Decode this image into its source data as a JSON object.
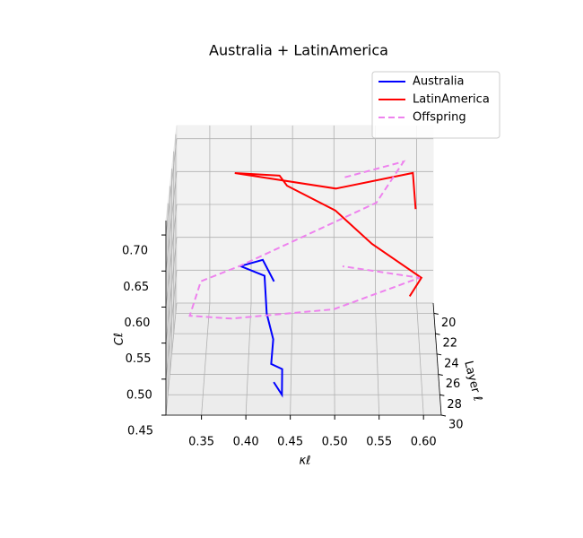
{
  "chart_data": {
    "type": "line3d",
    "title": "Australia + LatinAmerica",
    "xlabel": "κℓ",
    "ylabel": "Layer ℓ",
    "zlabel": "Cℓ",
    "layers": [
      20,
      21,
      22,
      23,
      24,
      25,
      26,
      27,
      28,
      29
    ],
    "xlim": [
      0.31,
      0.62
    ],
    "ylim": [
      19,
      30
    ],
    "zlim": [
      0.45,
      0.72
    ],
    "xticks": [
      0.35,
      {
        "value": 0.4,
        "label": "0.40"
      },
      0.45,
      {
        "value": 0.5,
        "label": "0.50"
      },
      0.55,
      {
        "value": 0.6,
        "label": "0.60"
      }
    ],
    "yticks": [
      20,
      22,
      24,
      26,
      28,
      30
    ],
    "zticks": [
      0.45,
      {
        "value": 0.5,
        "label": "0.50"
      },
      0.55,
      {
        "value": 0.6,
        "label": "0.60"
      },
      0.65,
      {
        "value": 0.7,
        "label": "0.70"
      }
    ],
    "grid": true,
    "legend": "upper right",
    "series": [
      {
        "name": "Australia",
        "color": "#0000ff",
        "linestyle": "solid",
        "x": [
          0.428,
          0.415,
          0.389,
          0.418,
          0.421,
          0.429,
          0.427,
          0.44,
          0.44,
          0.431
        ],
        "values": [
          0.498,
          0.545,
          0.55,
          0.55,
          0.509,
          0.486,
          0.465,
          0.472,
          0.45,
          0.482
        ]
      },
      {
        "name": "LatinAmerica",
        "color": "#ff0000",
        "linestyle": "solid",
        "x": [
          0.598,
          0.594,
          0.502,
          0.383,
          0.436,
          0.445,
          0.501,
          0.543,
          0.599,
          0.585
        ],
        "values": [
          0.607,
          0.675,
          0.665,
          0.701,
          0.71,
          0.708,
          0.685,
          0.65,
          0.615,
          0.602
        ]
      },
      {
        "name": "Offspring",
        "color": "#ee82ee",
        "linestyle": "dashed",
        "x": [
          0.513,
          0.583,
          0.55,
          0.39,
          0.344,
          0.332,
          0.381,
          0.499,
          0.597,
          0.509
        ],
        "values": [
          0.655,
          0.692,
          0.644,
          0.565,
          0.556,
          0.52,
          0.53,
          0.557,
          0.615,
          0.644
        ]
      }
    ]
  }
}
